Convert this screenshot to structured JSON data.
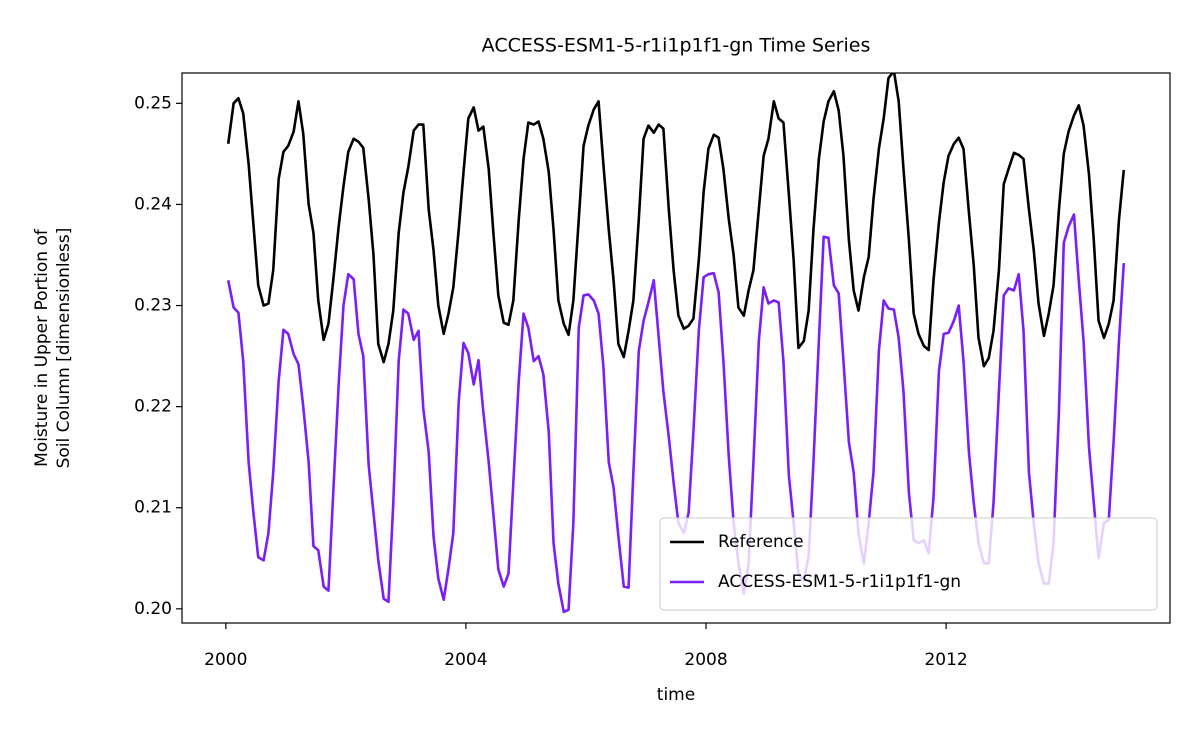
{
  "chart_data": {
    "type": "line",
    "title": "ACCESS-ESM1-5-r1i1p1f1-gn Time Series",
    "xlabel": "time",
    "ylabel": [
      "Moisture in Upper Portion of",
      "Soil Column [dimensionless]"
    ],
    "x": [
      2000.04,
      2000.13,
      2000.21,
      2000.29,
      2000.38,
      2000.46,
      2000.54,
      2000.63,
      2000.71,
      2000.79,
      2000.88,
      2000.96,
      2001.04,
      2001.13,
      2001.21,
      2001.29,
      2001.38,
      2001.46,
      2001.54,
      2001.63,
      2001.71,
      2001.79,
      2001.88,
      2001.96,
      2002.04,
      2002.13,
      2002.21,
      2002.29,
      2002.38,
      2002.46,
      2002.54,
      2002.63,
      2002.71,
      2002.79,
      2002.88,
      2002.96,
      2003.04,
      2003.13,
      2003.21,
      2003.29,
      2003.38,
      2003.46,
      2003.54,
      2003.63,
      2003.71,
      2003.79,
      2003.88,
      2003.96,
      2004.04,
      2004.13,
      2004.21,
      2004.29,
      2004.38,
      2004.46,
      2004.54,
      2004.63,
      2004.71,
      2004.79,
      2004.88,
      2004.96,
      2005.04,
      2005.13,
      2005.21,
      2005.29,
      2005.38,
      2005.46,
      2005.54,
      2005.63,
      2005.71,
      2005.79,
      2005.88,
      2005.96,
      2006.04,
      2006.13,
      2006.21,
      2006.29,
      2006.38,
      2006.46,
      2006.54,
      2006.63,
      2006.71,
      2006.79,
      2006.88,
      2006.96,
      2007.04,
      2007.13,
      2007.21,
      2007.29,
      2007.38,
      2007.46,
      2007.54,
      2007.63,
      2007.71,
      2007.79,
      2007.88,
      2007.96,
      2008.04,
      2008.13,
      2008.21,
      2008.29,
      2008.38,
      2008.46,
      2008.54,
      2008.63,
      2008.71,
      2008.79,
      2008.88,
      2008.96,
      2009.04,
      2009.13,
      2009.21,
      2009.29,
      2009.38,
      2009.46,
      2009.54,
      2009.63,
      2009.71,
      2009.79,
      2009.88,
      2009.96,
      2010.04,
      2010.13,
      2010.21,
      2010.29,
      2010.38,
      2010.46,
      2010.54,
      2010.63,
      2010.71,
      2010.79,
      2010.88,
      2010.96,
      2011.04,
      2011.13,
      2011.21,
      2011.29,
      2011.38,
      2011.46,
      2011.54,
      2011.63,
      2011.71,
      2011.79,
      2011.88,
      2011.96,
      2012.04,
      2012.13,
      2012.21,
      2012.29,
      2012.38,
      2012.46,
      2012.54,
      2012.63,
      2012.71,
      2012.79,
      2012.88,
      2012.96,
      2013.04,
      2013.13,
      2013.21,
      2013.29,
      2013.38,
      2013.46,
      2013.54,
      2013.63,
      2013.71,
      2013.79,
      2013.88,
      2013.96,
      2014.04,
      2014.13,
      2014.21,
      2014.29,
      2014.38,
      2014.46,
      2014.54,
      2014.63,
      2014.71,
      2014.79,
      2014.88,
      2014.96
    ],
    "series": [
      {
        "name": "Reference",
        "color": "#000000",
        "values": [
          0.246,
          0.25,
          0.2505,
          0.249,
          0.244,
          0.238,
          0.232,
          0.23,
          0.2302,
          0.2335,
          0.2425,
          0.2452,
          0.2458,
          0.2472,
          0.2502,
          0.247,
          0.24,
          0.2372,
          0.2305,
          0.2266,
          0.2282,
          0.2325,
          0.2378,
          0.2418,
          0.2452,
          0.2465,
          0.2462,
          0.2456,
          0.2405,
          0.235,
          0.2262,
          0.2244,
          0.2262,
          0.2295,
          0.2372,
          0.2412,
          0.2437,
          0.2473,
          0.2479,
          0.2479,
          0.2395,
          0.2355,
          0.23,
          0.2272,
          0.2292,
          0.2318,
          0.2375,
          0.2432,
          0.2485,
          0.2496,
          0.2473,
          0.2477,
          0.2435,
          0.237,
          0.231,
          0.2283,
          0.2281,
          0.2305,
          0.2385,
          0.2445,
          0.2481,
          0.2479,
          0.2482,
          0.2465,
          0.2432,
          0.2375,
          0.2305,
          0.2282,
          0.2271,
          0.2305,
          0.2385,
          0.2458,
          0.2478,
          0.2494,
          0.2502,
          0.244,
          0.2375,
          0.2325,
          0.2262,
          0.2249,
          0.2275,
          0.2305,
          0.2385,
          0.2465,
          0.2478,
          0.2471,
          0.2479,
          0.2475,
          0.2395,
          0.2335,
          0.229,
          0.2277,
          0.228,
          0.2287,
          0.2345,
          0.2412,
          0.2455,
          0.2469,
          0.2466,
          0.2435,
          0.2385,
          0.235,
          0.2298,
          0.229,
          0.2315,
          0.2335,
          0.2395,
          0.2448,
          0.2465,
          0.2502,
          0.2485,
          0.2481,
          0.241,
          0.2345,
          0.2258,
          0.2265,
          0.2295,
          0.2375,
          0.2445,
          0.2482,
          0.2502,
          0.2512,
          0.2493,
          0.2448,
          0.2365,
          0.2315,
          0.2295,
          0.2328,
          0.2348,
          0.2405,
          0.2455,
          0.2485,
          0.2525,
          0.2532,
          0.2502,
          0.2435,
          0.2365,
          0.2292,
          0.2272,
          0.226,
          0.2256,
          0.2325,
          0.2382,
          0.2422,
          0.2448,
          0.246,
          0.2466,
          0.2455,
          0.2392,
          0.234,
          0.2268,
          0.224,
          0.2248,
          0.2275,
          0.2335,
          0.242,
          0.2435,
          0.2451,
          0.2449,
          0.2445,
          0.2395,
          0.2355,
          0.2302,
          0.227,
          0.2292,
          0.232,
          0.2395,
          0.245,
          0.2472,
          0.2488,
          0.2498,
          0.2478,
          0.243,
          0.2365,
          0.2285,
          0.2268,
          0.2282,
          0.2305,
          0.2385,
          0.2434
        ]
      },
      {
        "name": "ACCESS-ESM1-5-r1i1p1f1-gn",
        "color": "#7a1ff5",
        "values": [
          0.2325,
          0.2298,
          0.2293,
          0.2245,
          0.2145,
          0.2095,
          0.2051,
          0.2048,
          0.2075,
          0.2135,
          0.2225,
          0.2276,
          0.2272,
          0.2252,
          0.2242,
          0.22,
          0.2145,
          0.2062,
          0.2058,
          0.2022,
          0.2018,
          0.2115,
          0.2222,
          0.23,
          0.2331,
          0.2326,
          0.2272,
          0.225,
          0.2142,
          0.2095,
          0.2048,
          0.201,
          0.2007,
          0.2105,
          0.2245,
          0.2296,
          0.2292,
          0.2266,
          0.2275,
          0.2198,
          0.2155,
          0.2072,
          0.203,
          0.2009,
          0.204,
          0.2075,
          0.2205,
          0.2263,
          0.2253,
          0.2222,
          0.2246,
          0.2195,
          0.2145,
          0.2092,
          0.2039,
          0.2022,
          0.2035,
          0.2125,
          0.2225,
          0.2292,
          0.2278,
          0.2245,
          0.225,
          0.2232,
          0.2175,
          0.2065,
          0.2025,
          0.1997,
          0.1999,
          0.2085,
          0.2278,
          0.231,
          0.2311,
          0.2305,
          0.2292,
          0.224,
          0.2145,
          0.212,
          0.2072,
          0.2022,
          0.2021,
          0.2135,
          0.2255,
          0.2285,
          0.2303,
          0.2325,
          0.227,
          0.2215,
          0.217,
          0.2125,
          0.2085,
          0.2075,
          0.2095,
          0.2175,
          0.2275,
          0.2328,
          0.2331,
          0.2332,
          0.2313,
          0.2245,
          0.215,
          0.2085,
          0.2045,
          0.2015,
          0.2045,
          0.2145,
          0.2265,
          0.2318,
          0.2302,
          0.2305,
          0.2303,
          0.2245,
          0.2132,
          0.2085,
          0.2035,
          0.2028,
          0.2052,
          0.2145,
          0.2265,
          0.2368,
          0.2367,
          0.232,
          0.2312,
          0.2245,
          0.2165,
          0.2135,
          0.2075,
          0.2045,
          0.2085,
          0.2135,
          0.2255,
          0.2305,
          0.2297,
          0.2296,
          0.2268,
          0.2215,
          0.2115,
          0.2068,
          0.2065,
          0.2068,
          0.2055,
          0.211,
          0.2235,
          0.2272,
          0.2273,
          0.2285,
          0.23,
          0.2245,
          0.2155,
          0.2105,
          0.2065,
          0.2045,
          0.2045,
          0.2105,
          0.2215,
          0.231,
          0.2317,
          0.2315,
          0.2331,
          0.2275,
          0.2135,
          0.2085,
          0.2045,
          0.2025,
          0.2025,
          0.2065,
          0.2195,
          0.2362,
          0.2378,
          0.239,
          0.2325,
          0.2265,
          0.216,
          0.2105,
          0.205,
          0.2085,
          0.2088,
          0.2165,
          0.2265,
          0.2342
        ]
      }
    ],
    "xlim": [
      1999.27,
      2015.73
    ],
    "xticks": [
      2000,
      2004,
      2008,
      2012
    ],
    "ylim": [
      0.1986,
      0.253
    ],
    "yticks": [
      {
        "value": 0.2,
        "label": "0.20"
      },
      0.21,
      0.22,
      0.23,
      0.24,
      0.25
    ],
    "grid": false,
    "legend": "lower right"
  }
}
